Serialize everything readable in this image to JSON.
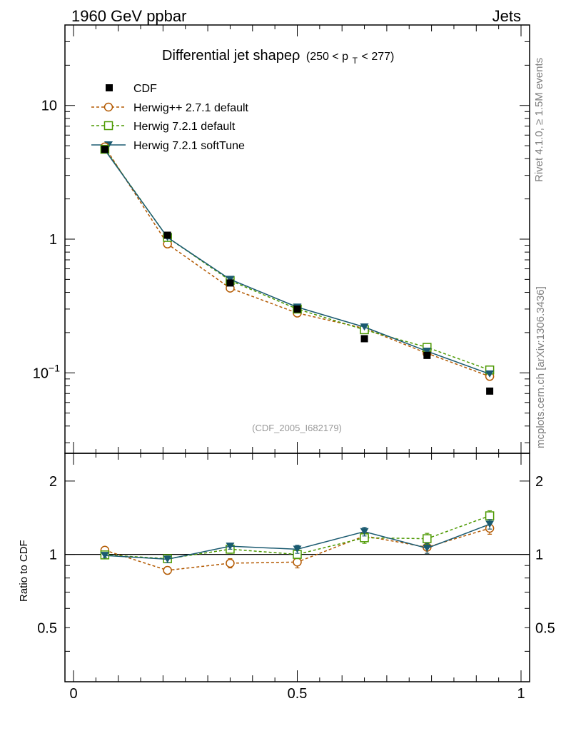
{
  "header": {
    "left": "1960 GeV ppbar",
    "right": "Jets"
  },
  "side": {
    "rivet": "Rivet 4.1.0, ≥ 1.5M events",
    "mcplots": "mcplots.cern.ch [arXiv:1306.3436]"
  },
  "chart_data": {
    "type": "line",
    "title": "Differential jet shapeρ",
    "title_range": "(250 < p",
    "title_sub": "T",
    "title_range_end": " < 277)",
    "analysis_id": "(CDF_2005_I682179)",
    "ylabel_ratio": "Ratio to CDF",
    "x": [
      0.07,
      0.21,
      0.35,
      0.5,
      0.65,
      0.79,
      0.93
    ],
    "xlim": [
      0,
      1
    ],
    "ylim_main": [
      0.025,
      40
    ],
    "ylim_ratio": [
      0.3,
      2.6
    ],
    "x_ticks": [
      {
        "value": 0,
        "label": "0"
      },
      {
        "value": 0.5,
        "label": "0.5"
      },
      {
        "value": 1,
        "label": "1"
      }
    ],
    "y_ticks_main": [
      {
        "value": 10,
        "label": "10"
      },
      {
        "value": 1,
        "label": "1"
      },
      {
        "value": 0.1,
        "label": "10",
        "sup": "−1"
      }
    ],
    "y_ticks_ratio": [
      {
        "value": 2,
        "label": "2"
      },
      {
        "value": 1,
        "label": "1"
      },
      {
        "value": 0.5,
        "label": "0.5"
      }
    ],
    "data": {
      "name": "CDF",
      "values": [
        4.7,
        1.07,
        0.47,
        0.3,
        0.18,
        0.135,
        0.073
      ]
    },
    "series": [
      {
        "name": "Herwig++ 2.7.1 default",
        "color": "#b35900",
        "dash": "4,3",
        "marker": "open-circle",
        "values": [
          4.9,
          0.92,
          0.43,
          0.28,
          0.215,
          0.14,
          0.094
        ],
        "ratio": [
          1.04,
          0.86,
          0.92,
          0.93,
          1.19,
          1.07,
          1.28
        ],
        "ratio_err": [
          0.02,
          0.03,
          0.04,
          0.05,
          0.06,
          0.06,
          0.07
        ]
      },
      {
        "name": "Herwig 7.2.1 default",
        "color": "#4c9900",
        "dash": "4,3",
        "marker": "open-square",
        "values": [
          4.7,
          1.03,
          0.49,
          0.3,
          0.21,
          0.155,
          0.105
        ],
        "ratio": [
          0.995,
          0.96,
          1.05,
          1.0,
          1.17,
          1.16,
          1.44
        ],
        "ratio_err": [
          0.02,
          0.03,
          0.04,
          0.04,
          0.06,
          0.06,
          0.07
        ]
      },
      {
        "name": "Herwig 7.2.1 softTune",
        "color": "#1a5a70",
        "dash": "",
        "marker": "filled-triangle-down",
        "values": [
          4.65,
          1.03,
          0.5,
          0.31,
          0.22,
          0.145,
          0.098
        ],
        "ratio": [
          0.99,
          0.955,
          1.08,
          1.05,
          1.24,
          1.06,
          1.33
        ],
        "ratio_err": [
          0.02,
          0.03,
          0.03,
          0.04,
          0.05,
          0.05,
          0.06
        ]
      }
    ]
  }
}
